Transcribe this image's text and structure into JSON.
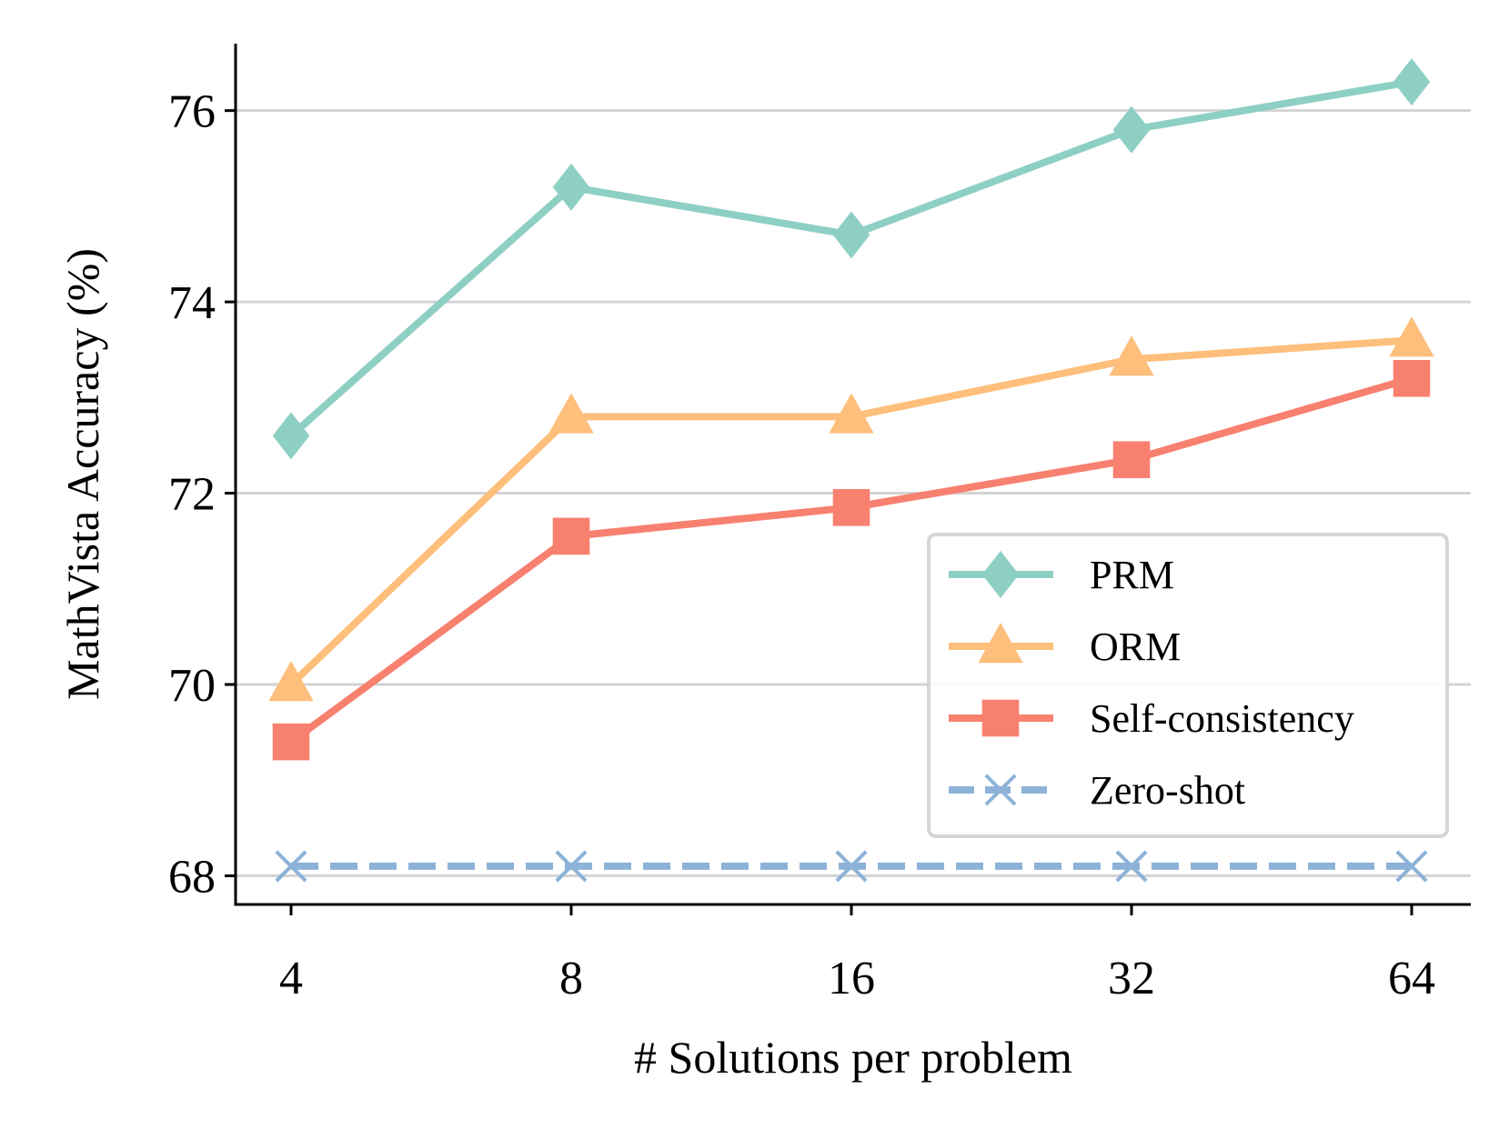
{
  "chart_data": {
    "type": "line",
    "xlabel": "# Solutions per problem",
    "ylabel": "MathVista Accuracy (%)",
    "categories": [
      "4",
      "8",
      "16",
      "32",
      "64"
    ],
    "ylim": [
      67.7,
      76.7
    ],
    "yticks": [
      68,
      70,
      72,
      74,
      76
    ],
    "grid": "horizontal",
    "legend_position": "lower-right",
    "series": [
      {
        "name": "PRM",
        "values": [
          72.6,
          75.2,
          74.7,
          75.8,
          76.3
        ],
        "color": "#8ecfc4",
        "marker": "diamond",
        "dashed": false
      },
      {
        "name": "ORM",
        "values": [
          70.0,
          72.8,
          72.8,
          73.4,
          73.6
        ],
        "color": "#fdbf7b",
        "marker": "triangle",
        "dashed": false
      },
      {
        "name": "Self-consistency",
        "values": [
          69.4,
          71.55,
          71.85,
          72.35,
          73.2
        ],
        "color": "#f8806f",
        "marker": "square",
        "dashed": false
      },
      {
        "name": "Zero-shot",
        "values": [
          68.1,
          68.1,
          68.1,
          68.1,
          68.1
        ],
        "color": "#8db2d7",
        "marker": "x",
        "dashed": true
      }
    ]
  }
}
